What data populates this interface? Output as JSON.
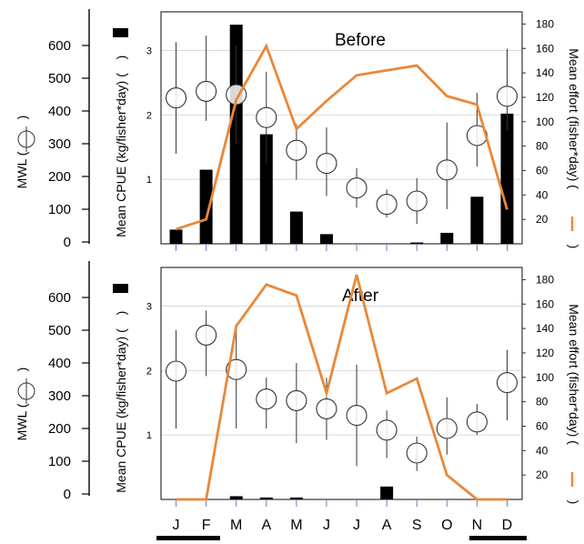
{
  "labels": {
    "mwl_axis": "MWL (",
    "cpue_axis": "Mean CPUE (kg/fisher*day) (",
    "effort_axis": "Mean effort (fisher*day) (",
    "paren_close": ")"
  },
  "colors": {
    "effort_line": "#e8883a",
    "bar": "#000000",
    "marker": "#000000",
    "grid": "#d9d9d9"
  },
  "chart_data": [
    {
      "type": "bar",
      "title": "Before",
      "categories": [
        "J",
        "F",
        "M",
        "A",
        "M",
        "J",
        "J",
        "A",
        "S",
        "O",
        "N",
        "D"
      ],
      "mwl_axis": {
        "ylim": [
          0,
          600
        ],
        "ticks": [
          0,
          100,
          200,
          300,
          400,
          500,
          600
        ]
      },
      "cpue_axis": {
        "ylim": [
          0,
          3.6
        ],
        "ticks": [
          1,
          2,
          3
        ]
      },
      "effort_axis": {
        "ylim": [
          0,
          190
        ],
        "ticks": [
          20,
          40,
          60,
          80,
          100,
          120,
          140,
          160,
          180
        ]
      },
      "series": [
        {
          "name": "Mean CPUE",
          "type": "bar",
          "axis": "cpue",
          "values": [
            0.22,
            1.15,
            3.4,
            1.7,
            0.5,
            0.15,
            0,
            0,
            0.02,
            0.17,
            0.73,
            2.02
          ]
        },
        {
          "name": "MWL",
          "type": "errorbar",
          "axis": "mwl",
          "values": [
            440,
            460,
            450,
            380,
            280,
            240,
            165,
            115,
            125,
            220,
            325,
            445
          ],
          "lower": [
            270,
            370,
            300,
            240,
            190,
            140,
            105,
            75,
            55,
            100,
            230,
            340
          ],
          "upper": [
            610,
            630,
            600,
            520,
            360,
            350,
            225,
            160,
            195,
            365,
            455,
            590
          ]
        },
        {
          "name": "Mean effort",
          "type": "line",
          "axis": "effort",
          "values": [
            12,
            20,
            118,
            162,
            94,
            117,
            138,
            142,
            146,
            121,
            114,
            28
          ]
        }
      ]
    },
    {
      "type": "bar",
      "title": "After",
      "categories": [
        "J",
        "F",
        "M",
        "A",
        "M",
        "J",
        "J",
        "A",
        "S",
        "O",
        "N",
        "D"
      ],
      "mwl_axis": {
        "ylim": [
          0,
          600
        ],
        "ticks": [
          0,
          100,
          200,
          300,
          400,
          500,
          600
        ]
      },
      "cpue_axis": {
        "ylim": [
          0,
          3.6
        ],
        "ticks": [
          1,
          2,
          3
        ]
      },
      "effort_axis": {
        "ylim": [
          0,
          190
        ],
        "ticks": [
          20,
          40,
          60,
          80,
          100,
          120,
          140,
          160,
          180
        ]
      },
      "series": [
        {
          "name": "Mean CPUE",
          "type": "bar",
          "axis": "cpue",
          "values": [
            0,
            0,
            0.05,
            0.03,
            0.03,
            0,
            0,
            0.2,
            0,
            0,
            0,
            0
          ]
        },
        {
          "name": "MWL",
          "type": "errorbar",
          "axis": "mwl",
          "values": [
            375,
            485,
            380,
            290,
            285,
            260,
            240,
            195,
            125,
            200,
            220,
            340
          ],
          "lower": [
            200,
            360,
            200,
            200,
            155,
            165,
            85,
            110,
            70,
            120,
            180,
            225
          ],
          "upper": [
            500,
            560,
            520,
            355,
            400,
            355,
            395,
            255,
            175,
            295,
            275,
            440
          ]
        },
        {
          "name": "Mean effort",
          "type": "line",
          "axis": "effort",
          "values": [
            0,
            0,
            142,
            176,
            167,
            87,
            184,
            87,
            99,
            20,
            0,
            0
          ]
        }
      ]
    }
  ]
}
